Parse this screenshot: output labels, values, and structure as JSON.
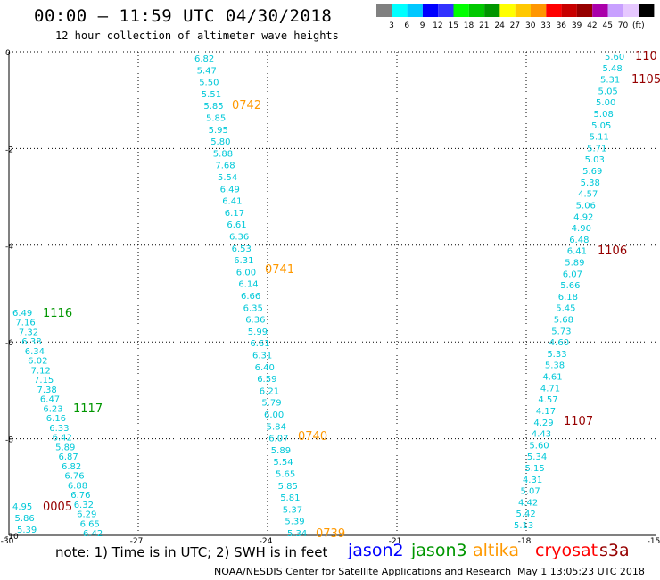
{
  "header": {
    "title": "00:00 – 11:59 UTC 04/30/2018",
    "subtitle": "12 hour collection of altimeter wave heights"
  },
  "legend": {
    "colors": [
      "#808080",
      "#00ffff",
      "#00c8ff",
      "#0000ff",
      "#3232ff",
      "#00ff00",
      "#00c800",
      "#009600",
      "#ffff00",
      "#ffc800",
      "#ff9600",
      "#ff0000",
      "#c80000",
      "#960000",
      "#aa00aa",
      "#c8a0ff",
      "#e6c8ff",
      "#000000"
    ],
    "labels": [
      "3",
      "6",
      "9",
      "12",
      "15",
      "18",
      "21",
      "24",
      "27",
      "30",
      "33",
      "36",
      "39",
      "42",
      "45",
      "70",
      "(ft)"
    ]
  },
  "axes": {
    "x_ticks": [
      "-30",
      "-27",
      "-24",
      "-21",
      "-18",
      "-15"
    ],
    "y_ticks": [
      "0",
      "-2",
      "-4",
      "-6",
      "-8",
      "-10"
    ]
  },
  "passes": [
    {
      "time": "0742",
      "color": "#ff9900"
    },
    {
      "time": "0741",
      "color": "#ff9900"
    },
    {
      "time": "0740",
      "color": "#ff9900"
    },
    {
      "time": "0739",
      "color": "#ff9900"
    },
    {
      "time": "1116",
      "color": "#009600"
    },
    {
      "time": "1117",
      "color": "#009600"
    },
    {
      "time": "0005",
      "color": "#960000"
    },
    {
      "time": "110",
      "color": "#960000"
    },
    {
      "time": "1105",
      "color": "#960000"
    },
    {
      "time": "1106",
      "color": "#960000"
    },
    {
      "time": "1107",
      "color": "#960000"
    }
  ],
  "tracks": {
    "a": [
      "6.82",
      "5.47",
      "5.50",
      "5.51",
      "5.85",
      "5.85",
      "5.95",
      "5.80",
      "5.88",
      "7.68",
      "5.54",
      "6.49",
      "6.41",
      "6.17",
      "6.61",
      "6.36",
      "6.53",
      "6.31",
      "6.00",
      "6.14",
      "6.66",
      "6.35",
      "6.36",
      "5.99",
      "6.61",
      "6.31",
      "6.40",
      "6.59",
      "6.21",
      "5.79",
      "6.00",
      "5.84",
      "6.07",
      "5.89",
      "5.54",
      "5.65",
      "5.85",
      "5.81",
      "5.37",
      "5.39",
      "5.34"
    ],
    "b": [
      "6.49",
      "7.16",
      "7.32",
      "6.38",
      "6.34",
      "6.02",
      "7.12",
      "7.15",
      "7.38",
      "6.47",
      "6.23",
      "6.16",
      "6.33",
      "6.42",
      "5.89",
      "6.87",
      "6.82",
      "6.76",
      "6.88",
      "6.76",
      "6.32",
      "6.29",
      "6.65",
      "6.42"
    ],
    "b2": [
      "4.95",
      "5.86",
      "5.39"
    ],
    "c": [
      "5.60",
      "5.48",
      "5.31",
      "5.05",
      "5.00",
      "5.08",
      "5.05",
      "5.11",
      "5.71",
      "5.03",
      "5.69",
      "5.38",
      "4.57",
      "5.06",
      "4.92",
      "4.90",
      "6.48",
      "6.41",
      "5.89",
      "6.07",
      "5.66",
      "6.18",
      "5.45",
      "5.68",
      "5.73",
      "4.60",
      "5.33",
      "5.38",
      "4.61",
      "4.71",
      "4.57",
      "4.17",
      "4.29",
      "4.43",
      "5.60",
      "5.34",
      "5.15",
      "4.31",
      "5.07",
      "4.42",
      "5.42",
      "5.13"
    ]
  },
  "footer": {
    "note": "note: 1) Time is in UTC; 2) SWH is in feet",
    "satellites": [
      {
        "name": "jason2",
        "color": "#0000ff"
      },
      {
        "name": "jason3",
        "color": "#009600"
      },
      {
        "name": "altika",
        "color": "#ff9900"
      },
      {
        "name": "cryosat",
        "color": "#ff0000"
      },
      {
        "name": "s3a",
        "color": "#960000"
      }
    ],
    "credit": "NOAA/NESDIS Center for Satellite Applications and Research",
    "stamp": "May  1 13:05:23 UTC 2018"
  }
}
